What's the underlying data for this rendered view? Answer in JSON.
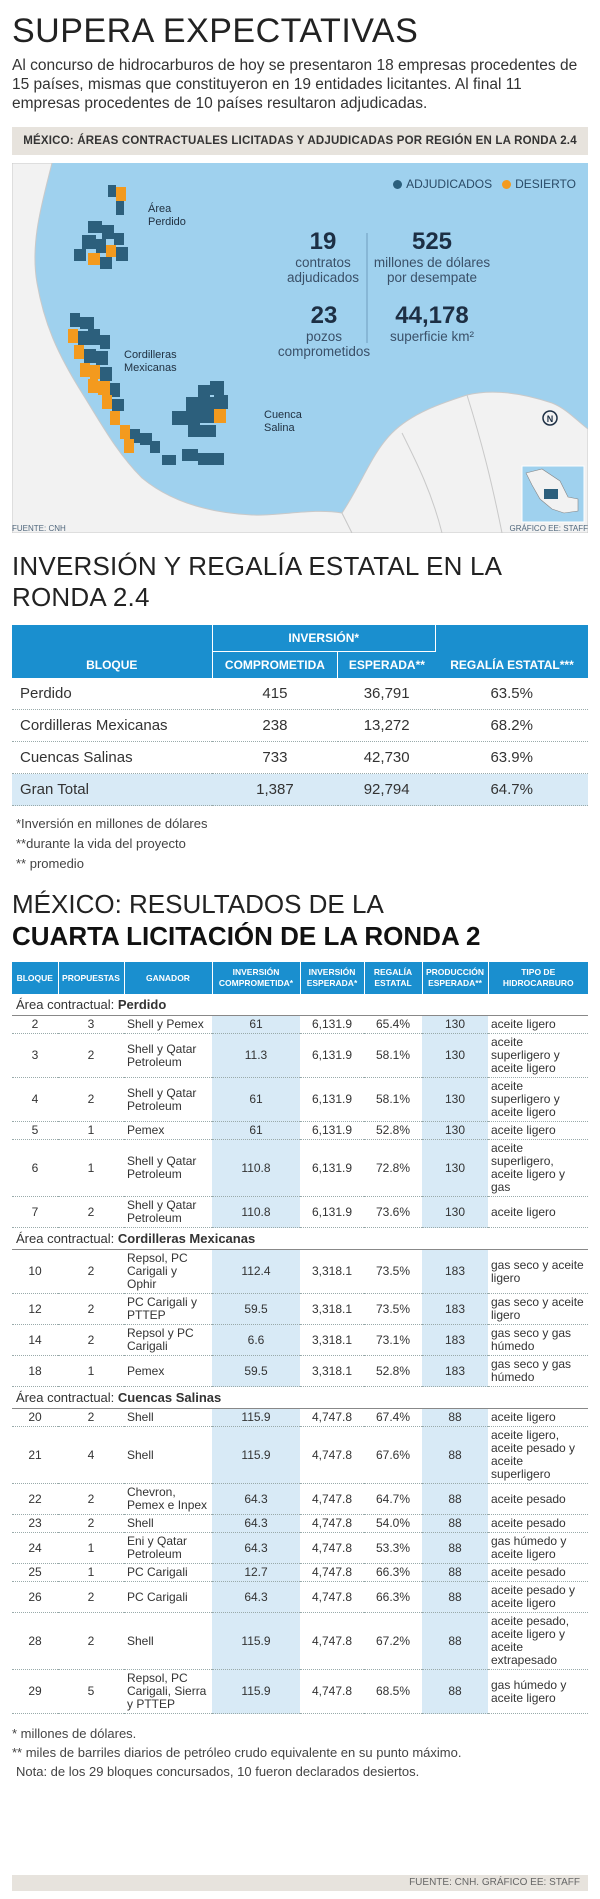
{
  "headline": "SUPERA EXPECTATIVAS",
  "intro": "Al concurso de hidrocarburos de hoy se presentaron 18 empresas procedentes de 15 países, mismas que constituyeron en 19 entidades licitantes. Al final 11 empresas procedentes de 10 países resultaron adjudicadas.",
  "map": {
    "title": "MÉXICO: ÁREAS CONTRACTUALES LICITADAS Y ADJUDICADAS POR REGIÓN EN LA RONDA 2.4",
    "legend": [
      {
        "label": "ADJUDICADOS",
        "color": "#2c5f7c"
      },
      {
        "label": "DESIERTO",
        "color": "#f39a1e"
      }
    ],
    "regions": [
      "Área\nPerdido",
      "Cordilleras\nMexicanas",
      "Cuenca\nSalina"
    ],
    "stats": [
      {
        "num": "19",
        "label": "contratos adjudicados"
      },
      {
        "num": "525",
        "label": "millones de dólares por desempate"
      },
      {
        "num": "23",
        "label": "pozos comprometidos"
      },
      {
        "num": "44,178",
        "label": "superficie km²"
      }
    ],
    "source_left": "FUENTE: CNH",
    "source_right": "GRÁFICO EE: STAFF",
    "colors": {
      "water": "#9fd1ee",
      "land": "#f2f2f2",
      "adjudicado": "#2c5f7c",
      "desierto": "#f39a1e"
    }
  },
  "investment": {
    "title": "INVERSIÓN Y REGALÍA ESTATAL EN LA RONDA 2.4",
    "headers": {
      "bloque": "BLOQUE",
      "inversion": "INVERSIÓN*",
      "comprometida": "COMPROMETIDA",
      "esperada": "ESPERADA**",
      "regalia": "REGALÍA ESTATAL***"
    },
    "rows": [
      [
        "Perdido",
        "415",
        "36,791",
        "63.5%"
      ],
      [
        "Cordilleras Mexicanas",
        "238",
        "13,272",
        "68.2%"
      ],
      [
        "Cuencas Salinas",
        "733",
        "42,730",
        "63.9%"
      ],
      [
        "Gran Total",
        "1,387",
        "92,794",
        "64.7%"
      ]
    ],
    "notes": [
      "*Inversión en millones de dólares",
      "**durante la vida del proyecto",
      "** promedio"
    ]
  },
  "results": {
    "title_1": "MÉXICO: RESULTADOS DE LA",
    "title_2": "CUARTA LICITACIÓN DE LA RONDA 2",
    "headers": [
      "BLOQUE",
      "PROPUESTAS",
      "GANADOR",
      "INVERSIÓN COMPROMETIDA*",
      "INVERSIÓN ESPERADA*",
      "REGALÍA ESTATAL",
      "PRODUCCIÓN ESPERADA**",
      "TIPO DE HIDROCARBURO"
    ],
    "area_prefix": "Área contractual: ",
    "areas": [
      {
        "name": "Perdido",
        "rows": [
          [
            "2",
            "3",
            "Shell y Pemex",
            "61",
            "6,131.9",
            "65.4%",
            "130",
            "aceite ligero"
          ],
          [
            "3",
            "2",
            "Shell y Qatar Petroleum",
            "11.3",
            "6,131.9",
            "58.1%",
            "130",
            "aceite superligero y aceite ligero"
          ],
          [
            "4",
            "2",
            "Shell y Qatar Petroleum",
            "61",
            "6,131.9",
            "58.1%",
            "130",
            "aceite superligero y aceite ligero"
          ],
          [
            "5",
            "1",
            "Pemex",
            "61",
            "6,131.9",
            "52.8%",
            "130",
            "aceite ligero"
          ],
          [
            "6",
            "1",
            "Shell y Qatar Petroleum",
            "110.8",
            "6,131.9",
            "72.8%",
            "130",
            "aceite superligero, aceite ligero y gas"
          ],
          [
            "7",
            "2",
            "Shell y Qatar Petroleum",
            "110.8",
            "6,131.9",
            "73.6%",
            "130",
            "aceite ligero"
          ]
        ]
      },
      {
        "name": "Cordilleras Mexicanas",
        "rows": [
          [
            "10",
            "2",
            "Repsol, PC Carigali y Ophir",
            "112.4",
            "3,318.1",
            "73.5%",
            "183",
            "gas seco y aceite ligero"
          ],
          [
            "12",
            "2",
            "PC Carigali y PTTEP",
            "59.5",
            "3,318.1",
            "73.5%",
            "183",
            "gas seco y aceite ligero"
          ],
          [
            "14",
            "2",
            "Repsol y PC Carigali",
            "6.6",
            "3,318.1",
            "73.1%",
            "183",
            "gas seco y gas húmedo"
          ],
          [
            "18",
            "1",
            "Pemex",
            "59.5",
            "3,318.1",
            "52.8%",
            "183",
            "gas seco y gas húmedo"
          ]
        ]
      },
      {
        "name": "Cuencas Salinas",
        "rows": [
          [
            "20",
            "2",
            "Shell",
            "115.9",
            "4,747.8",
            "67.4%",
            "88",
            "aceite ligero"
          ],
          [
            "21",
            "4",
            "Shell",
            "115.9",
            "4,747.8",
            "67.6%",
            "88",
            "aceite ligero, aceite pesado y aceite superligero"
          ],
          [
            "22",
            "2",
            "Chevron, Pemex e Inpex",
            "64.3",
            "4,747.8",
            "64.7%",
            "88",
            "aceite pesado"
          ],
          [
            "23",
            "2",
            "Shell",
            "64.3",
            "4,747.8",
            "54.0%",
            "88",
            "aceite pesado"
          ],
          [
            "24",
            "1",
            "Eni y Qatar Petroleum",
            "64.3",
            "4,747.8",
            "53.3%",
            "88",
            "gas húmedo y aceite ligero"
          ],
          [
            "25",
            "1",
            "PC Carigali",
            "12.7",
            "4,747.8",
            "66.3%",
            "88",
            "aceite pesado"
          ],
          [
            "26",
            "2",
            "PC Carigali",
            "64.3",
            "4,747.8",
            "66.3%",
            "88",
            "aceite pesado y aceite ligero"
          ],
          [
            "28",
            "2",
            "Shell",
            "115.9",
            "4,747.8",
            "67.2%",
            "88",
            "aceite pesado, aceite ligero y aceite extrapesado"
          ],
          [
            "29",
            "5",
            "Repsol, PC Carigali, Sierra y PTTEP",
            "115.9",
            "4,747.8",
            "68.5%",
            "88",
            "gas húmedo y aceite ligero"
          ]
        ]
      }
    ],
    "notes": [
      "* millones de dólares.",
      "**  miles de barriles diarios de petróleo crudo equivalente en su punto máximo.",
      "Nota: de los 29 bloques concursados, 10 fueron declarados desiertos."
    ],
    "source": "FUENTE: CNH. GRÁFICO EE: STAFF"
  }
}
